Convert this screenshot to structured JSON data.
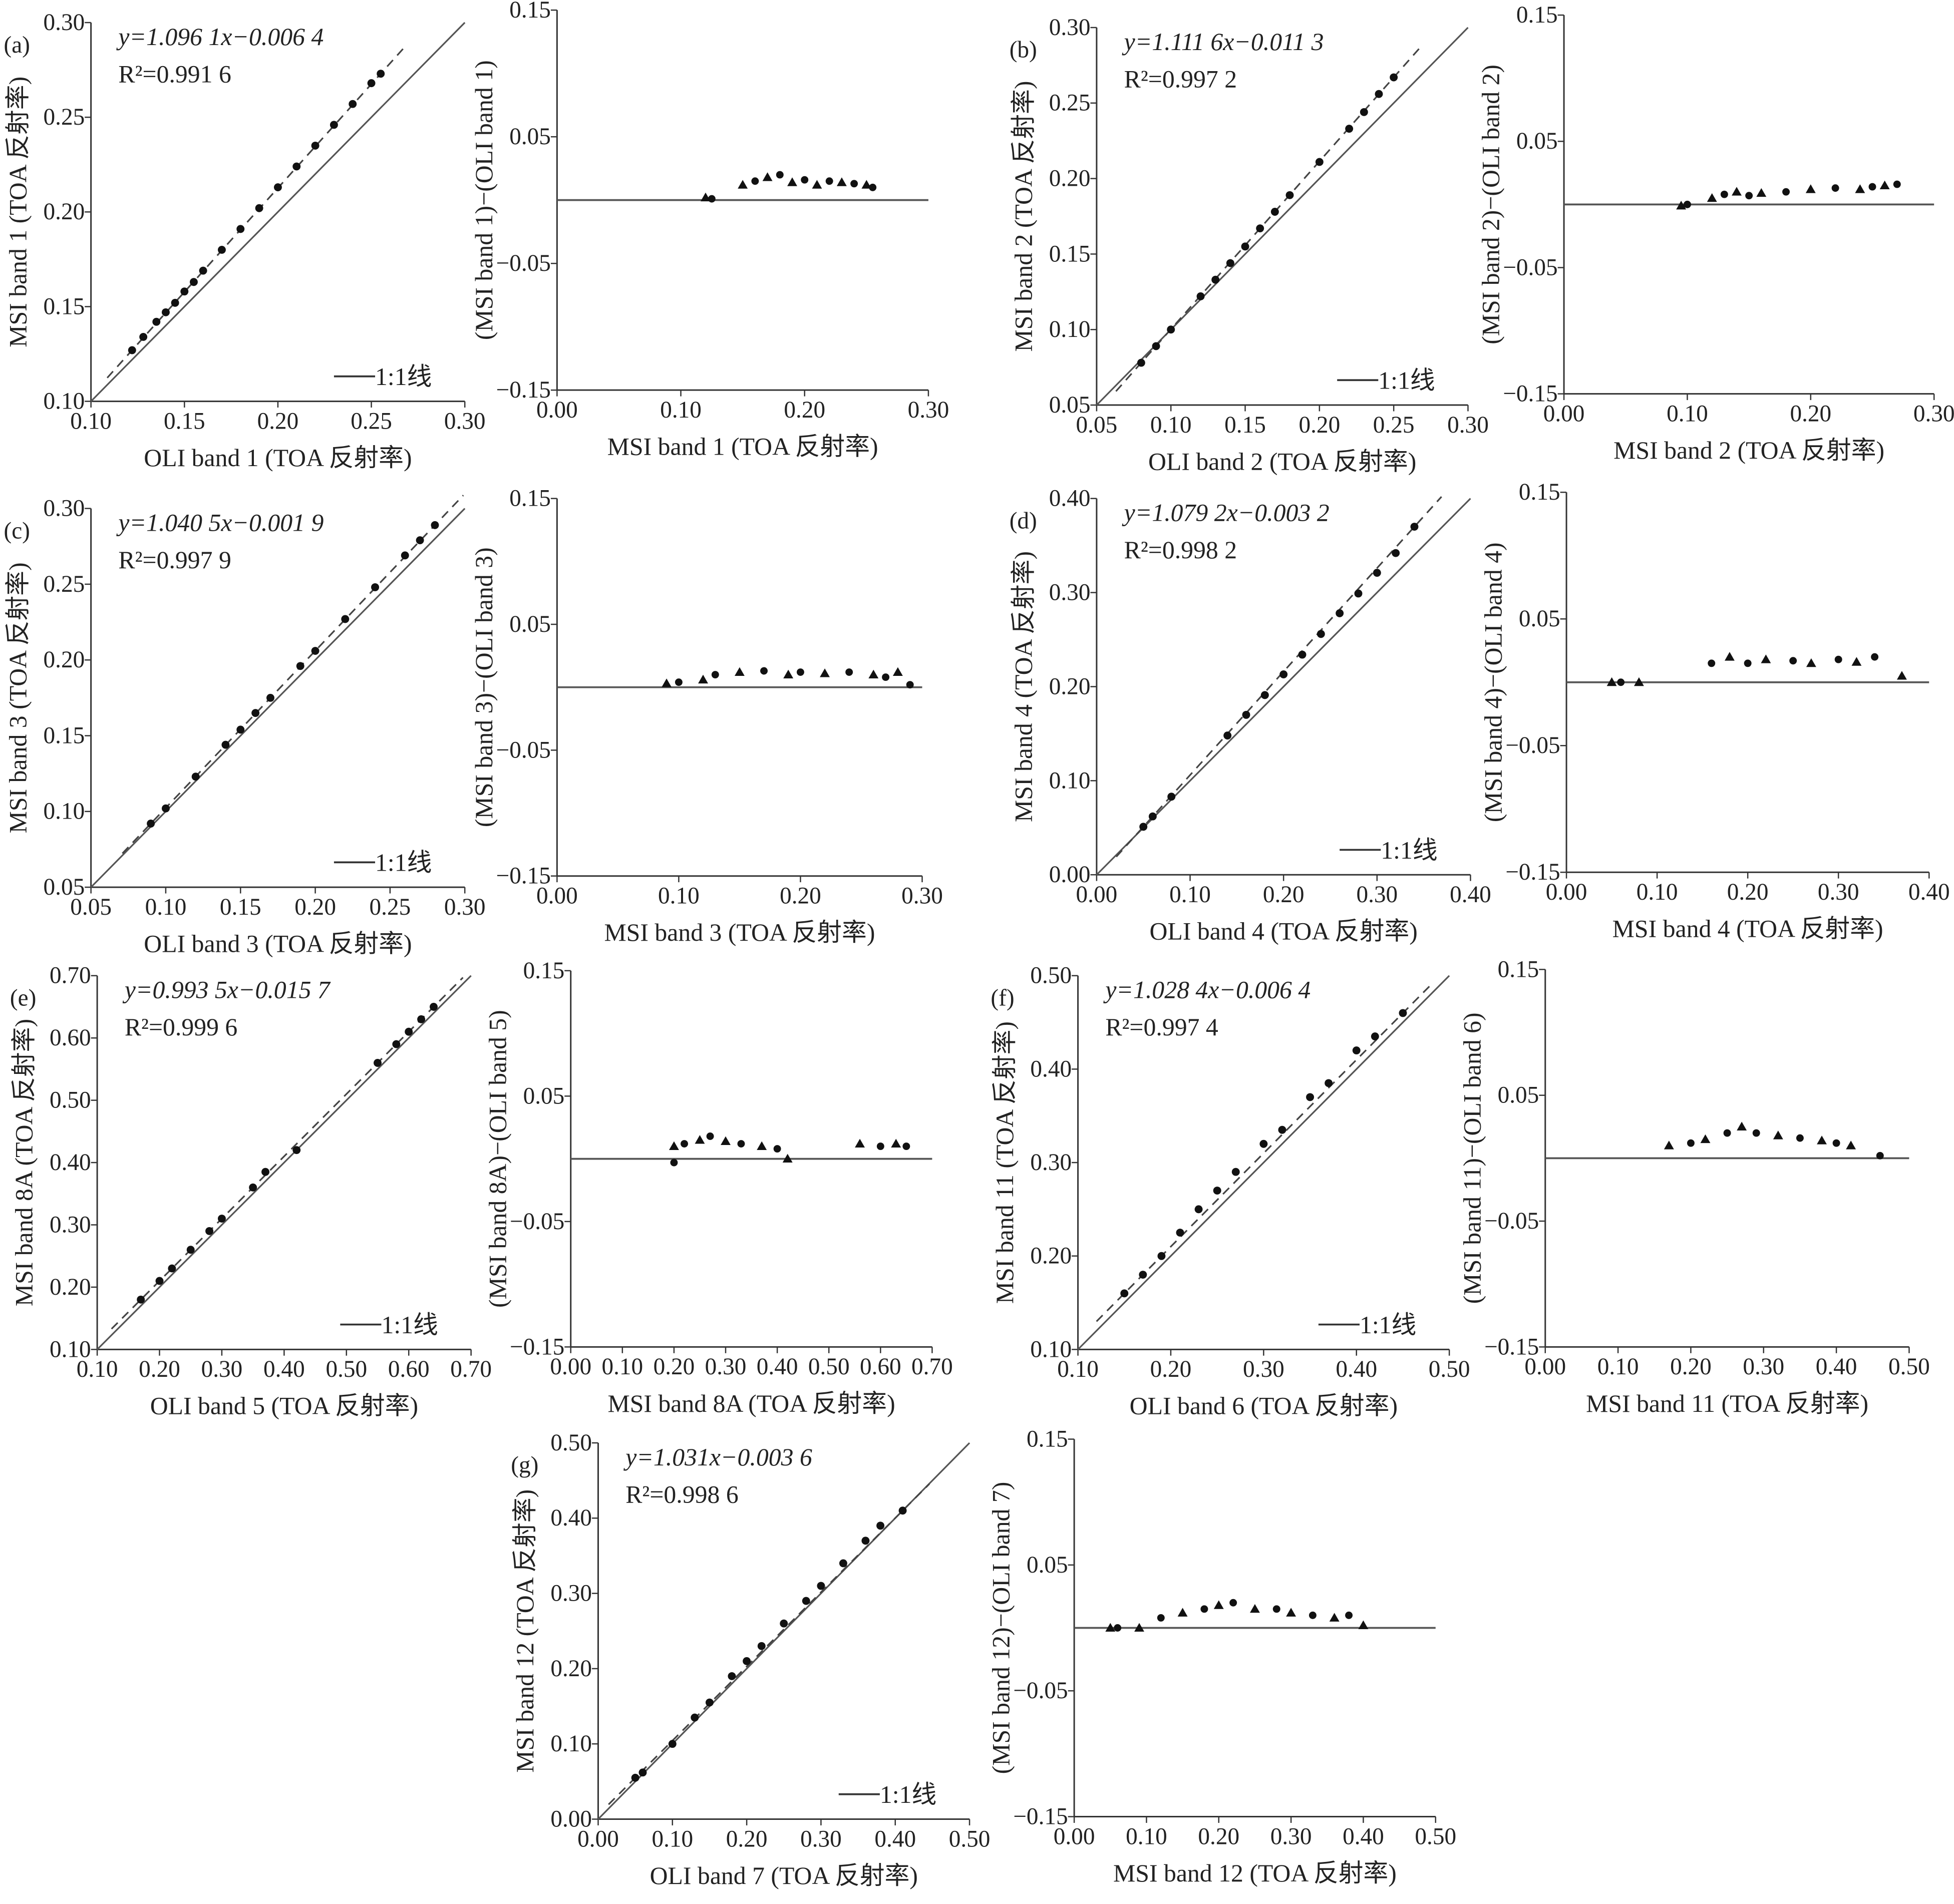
{
  "chart_data": [
    {
      "type": "scatter",
      "panel": "(a)",
      "equation": "y=1.096 1x−0.006 4",
      "r2": "R²=0.991 6",
      "legend": "1:1线",
      "xlabel": "OLI band 1 (TOA 反射率)",
      "ylabel": "MSI band 1 (TOA 反射率)",
      "xlim": [
        0.1,
        0.3
      ],
      "ylim": [
        0.1,
        0.3
      ],
      "xticks": [
        "0.10",
        "0.15",
        "0.20",
        "0.25",
        "0.30"
      ],
      "yticks": [
        "0.10",
        "0.15",
        "0.20",
        "0.25",
        "0.30"
      ],
      "points": [
        [
          0.122,
          0.127
        ],
        [
          0.128,
          0.134
        ],
        [
          0.135,
          0.142
        ],
        [
          0.14,
          0.147
        ],
        [
          0.145,
          0.152
        ],
        [
          0.15,
          0.158
        ],
        [
          0.155,
          0.163
        ],
        [
          0.16,
          0.169
        ],
        [
          0.17,
          0.18
        ],
        [
          0.18,
          0.191
        ],
        [
          0.19,
          0.202
        ],
        [
          0.2,
          0.213
        ],
        [
          0.21,
          0.224
        ],
        [
          0.22,
          0.235
        ],
        [
          0.23,
          0.246
        ],
        [
          0.24,
          0.257
        ],
        [
          0.25,
          0.268
        ],
        [
          0.255,
          0.273
        ]
      ]
    },
    {
      "type": "scatter",
      "panel": "residual-a",
      "xlabel": "MSI band 1 (TOA 反射率)",
      "ylabel": "(MSI band 1)−(OLI band 1)",
      "xlim": [
        0,
        0.3
      ],
      "ylim": [
        -0.15,
        0.15
      ],
      "xticks": [
        "0.00",
        "0.10",
        "0.20",
        "0.30"
      ],
      "yticks": [
        "−0.15",
        "−0.05",
        "0.05",
        "0.15"
      ],
      "points": [
        [
          0.12,
          0.002
        ],
        [
          0.125,
          0.001
        ],
        [
          0.15,
          0.012
        ],
        [
          0.16,
          0.015
        ],
        [
          0.17,
          0.018
        ],
        [
          0.18,
          0.02
        ],
        [
          0.19,
          0.014
        ],
        [
          0.2,
          0.016
        ],
        [
          0.21,
          0.012
        ],
        [
          0.22,
          0.015
        ],
        [
          0.23,
          0.014
        ],
        [
          0.24,
          0.013
        ],
        [
          0.25,
          0.012
        ],
        [
          0.255,
          0.01
        ]
      ]
    },
    {
      "type": "scatter",
      "panel": "(b)",
      "equation": "y=1.111 6x−0.011 3",
      "r2": "R²=0.997 2",
      "legend": "1:1线",
      "xlabel": "OLI band 2 (TOA 反射率)",
      "ylabel": "MSI band 2 (TOA 反射率)",
      "xlim": [
        0.05,
        0.3
      ],
      "ylim": [
        0.05,
        0.3
      ],
      "xticks": [
        "0.05",
        "0.10",
        "0.15",
        "0.20",
        "0.25",
        "0.30"
      ],
      "yticks": [
        "0.05",
        "0.10",
        "0.15",
        "0.20",
        "0.25",
        "0.30"
      ],
      "points": [
        [
          0.08,
          0.078
        ],
        [
          0.09,
          0.089
        ],
        [
          0.1,
          0.1
        ],
        [
          0.12,
          0.122
        ],
        [
          0.13,
          0.133
        ],
        [
          0.14,
          0.144
        ],
        [
          0.15,
          0.155
        ],
        [
          0.16,
          0.167
        ],
        [
          0.17,
          0.178
        ],
        [
          0.18,
          0.189
        ],
        [
          0.2,
          0.211
        ],
        [
          0.22,
          0.233
        ],
        [
          0.23,
          0.244
        ],
        [
          0.24,
          0.256
        ],
        [
          0.25,
          0.267
        ]
      ]
    },
    {
      "type": "scatter",
      "panel": "residual-b",
      "xlabel": "MSI band 2 (TOA 反射率)",
      "ylabel": "(MSI band 2)−(OLI band 2)",
      "xlim": [
        0,
        0.3
      ],
      "ylim": [
        -0.15,
        0.15
      ],
      "xticks": [
        "0.00",
        "0.10",
        "0.20",
        "0.30"
      ],
      "yticks": [
        "−0.15",
        "−0.05",
        "0.05",
        "0.15"
      ],
      "points": [
        [
          0.095,
          -0.001
        ],
        [
          0.1,
          0
        ],
        [
          0.12,
          0.005
        ],
        [
          0.13,
          0.008
        ],
        [
          0.14,
          0.01
        ],
        [
          0.15,
          0.007
        ],
        [
          0.16,
          0.009
        ],
        [
          0.18,
          0.01
        ],
        [
          0.2,
          0.012
        ],
        [
          0.22,
          0.013
        ],
        [
          0.24,
          0.012
        ],
        [
          0.25,
          0.014
        ],
        [
          0.26,
          0.015
        ],
        [
          0.27,
          0.016
        ]
      ]
    },
    {
      "type": "scatter",
      "panel": "(c)",
      "equation": "y=1.040 5x−0.001 9",
      "r2": "R²=0.997 9",
      "legend": "1:1线",
      "xlabel": "OLI band 3 (TOA 反射率)",
      "ylabel": "MSI band 3 (TOA 反射率)",
      "xlim": [
        0.05,
        0.3
      ],
      "ylim": [
        0.05,
        0.3
      ],
      "xticks": [
        "0.05",
        "0.10",
        "0.15",
        "0.20",
        "0.25",
        "0.30"
      ],
      "yticks": [
        "0.05",
        "0.10",
        "0.15",
        "0.20",
        "0.25",
        "0.30"
      ],
      "points": [
        [
          0.09,
          0.092
        ],
        [
          0.1,
          0.102
        ],
        [
          0.12,
          0.123
        ],
        [
          0.14,
          0.144
        ],
        [
          0.15,
          0.154
        ],
        [
          0.16,
          0.165
        ],
        [
          0.17,
          0.175
        ],
        [
          0.19,
          0.196
        ],
        [
          0.2,
          0.206
        ],
        [
          0.22,
          0.227
        ],
        [
          0.24,
          0.248
        ],
        [
          0.26,
          0.269
        ],
        [
          0.27,
          0.279
        ],
        [
          0.28,
          0.289
        ]
      ]
    },
    {
      "type": "scatter",
      "panel": "residual-c",
      "xlabel": "MSI band 3 (TOA 反射率)",
      "ylabel": "(MSI band 3)−(OLI band 3)",
      "xlim": [
        0,
        0.3
      ],
      "ylim": [
        -0.15,
        0.15
      ],
      "xticks": [
        "0.00",
        "0.10",
        "0.20",
        "0.30"
      ],
      "yticks": [
        "−0.15",
        "−0.05",
        "0.05",
        "0.15"
      ],
      "points": [
        [
          0.09,
          0.003
        ],
        [
          0.1,
          0.004
        ],
        [
          0.12,
          0.006
        ],
        [
          0.13,
          0.01
        ],
        [
          0.15,
          0.012
        ],
        [
          0.17,
          0.013
        ],
        [
          0.19,
          0.01
        ],
        [
          0.2,
          0.012
        ],
        [
          0.22,
          0.011
        ],
        [
          0.24,
          0.012
        ],
        [
          0.26,
          0.01
        ],
        [
          0.27,
          0.008
        ],
        [
          0.28,
          0.012
        ],
        [
          0.29,
          0.002
        ]
      ]
    },
    {
      "type": "scatter",
      "panel": "(d)",
      "equation": "y=1.079 2x−0.003 2",
      "r2": "R²=0.998 2",
      "legend": "1:1线",
      "xlabel": "OLI band 4 (TOA 反射率)",
      "ylabel": "MSI band 4 (TOA 反射率)",
      "xlim": [
        0,
        0.4
      ],
      "ylim": [
        0,
        0.4
      ],
      "xticks": [
        "0.00",
        "0.10",
        "0.20",
        "0.30",
        "0.40"
      ],
      "yticks": [
        "0.00",
        "0.10",
        "0.20",
        "0.30",
        "0.40"
      ],
      "points": [
        [
          0.05,
          0.051
        ],
        [
          0.06,
          0.062
        ],
        [
          0.08,
          0.083
        ],
        [
          0.14,
          0.148
        ],
        [
          0.16,
          0.17
        ],
        [
          0.18,
          0.191
        ],
        [
          0.2,
          0.213
        ],
        [
          0.22,
          0.234
        ],
        [
          0.24,
          0.256
        ],
        [
          0.26,
          0.278
        ],
        [
          0.28,
          0.299
        ],
        [
          0.3,
          0.321
        ],
        [
          0.32,
          0.342
        ],
        [
          0.34,
          0.37
        ]
      ]
    },
    {
      "type": "scatter",
      "panel": "residual-d",
      "xlabel": "MSI band 4 (TOA 反射率)",
      "ylabel": "(MSI band 4)−(OLI band 4)",
      "xlim": [
        0,
        0.4
      ],
      "ylim": [
        -0.15,
        0.15
      ],
      "xticks": [
        "0.00",
        "0.10",
        "0.20",
        "0.30",
        "0.40"
      ],
      "yticks": [
        "−0.15",
        "−0.05",
        "0.05",
        "0.15"
      ],
      "points": [
        [
          0.05,
          0
        ],
        [
          0.06,
          0
        ],
        [
          0.08,
          0
        ],
        [
          0.16,
          0.015
        ],
        [
          0.18,
          0.02
        ],
        [
          0.2,
          0.015
        ],
        [
          0.22,
          0.018
        ],
        [
          0.25,
          0.017
        ],
        [
          0.27,
          0.015
        ],
        [
          0.3,
          0.018
        ],
        [
          0.32,
          0.016
        ],
        [
          0.34,
          0.02
        ],
        [
          0.37,
          0.005
        ]
      ]
    },
    {
      "type": "scatter",
      "panel": "(e)",
      "equation": "y=0.993 5x−0.015 7",
      "r2": "R²=0.999 6",
      "legend": "1:1线",
      "xlabel": "OLI band 5 (TOA 反射率)",
      "ylabel": "MSI band 8A (TOA 反射率)",
      "xlim": [
        0.1,
        0.7
      ],
      "ylim": [
        0.1,
        0.7
      ],
      "xticks": [
        "0.10",
        "0.20",
        "0.30",
        "0.40",
        "0.50",
        "0.60",
        "0.70"
      ],
      "yticks": [
        "0.10",
        "0.20",
        "0.30",
        "0.40",
        "0.50",
        "0.60",
        "0.70"
      ],
      "points": [
        [
          0.17,
          0.18
        ],
        [
          0.2,
          0.21
        ],
        [
          0.22,
          0.23
        ],
        [
          0.25,
          0.26
        ],
        [
          0.28,
          0.29
        ],
        [
          0.3,
          0.31
        ],
        [
          0.35,
          0.36
        ],
        [
          0.37,
          0.385
        ],
        [
          0.42,
          0.42
        ],
        [
          0.55,
          0.56
        ],
        [
          0.58,
          0.59
        ],
        [
          0.6,
          0.61
        ],
        [
          0.62,
          0.63
        ],
        [
          0.64,
          0.65
        ]
      ]
    },
    {
      "type": "scatter",
      "panel": "residual-e",
      "xlabel": "MSI band 8A (TOA 反射率)",
      "ylabel": "(MSI band 8A)−(OLI band 5)",
      "xlim": [
        0,
        0.7
      ],
      "ylim": [
        -0.15,
        0.15
      ],
      "xticks": [
        "0.00",
        "0.10",
        "0.20",
        "0.30",
        "0.40",
        "0.50",
        "0.60",
        "0.70"
      ],
      "yticks": [
        "−0.15",
        "−0.05",
        "0.05",
        "0.15"
      ],
      "points": [
        [
          0.2,
          0.01
        ],
        [
          0.22,
          0.012
        ],
        [
          0.25,
          0.015
        ],
        [
          0.27,
          0.018
        ],
        [
          0.3,
          0.014
        ],
        [
          0.33,
          0.012
        ],
        [
          0.37,
          0.01
        ],
        [
          0.4,
          0.008
        ],
        [
          0.42,
          0
        ],
        [
          0.2,
          -0.003
        ],
        [
          0.56,
          0.012
        ],
        [
          0.6,
          0.01
        ],
        [
          0.63,
          0.012
        ],
        [
          0.65,
          0.01
        ]
      ]
    },
    {
      "type": "scatter",
      "panel": "(f)",
      "equation": "y=1.028 4x−0.006 4",
      "r2": "R²=0.997 4",
      "legend": "1:1线",
      "xlabel": "OLI band 6 (TOA 反射率)",
      "ylabel": "MSI band 11 (TOA 反射率)",
      "xlim": [
        0.1,
        0.5
      ],
      "ylim": [
        0.1,
        0.5
      ],
      "xticks": [
        "0.10",
        "0.20",
        "0.30",
        "0.40",
        "0.50"
      ],
      "yticks": [
        "0.10",
        "0.20",
        "0.30",
        "0.40",
        "0.50"
      ],
      "points": [
        [
          0.15,
          0.16
        ],
        [
          0.17,
          0.18
        ],
        [
          0.19,
          0.2
        ],
        [
          0.21,
          0.225
        ],
        [
          0.23,
          0.25
        ],
        [
          0.25,
          0.27
        ],
        [
          0.27,
          0.29
        ],
        [
          0.3,
          0.32
        ],
        [
          0.32,
          0.335
        ],
        [
          0.35,
          0.37
        ],
        [
          0.37,
          0.385
        ],
        [
          0.4,
          0.42
        ],
        [
          0.42,
          0.435
        ],
        [
          0.45,
          0.46
        ]
      ]
    },
    {
      "type": "scatter",
      "panel": "residual-f",
      "xlabel": "MSI band 11 (TOA 反射率)",
      "ylabel": "(MSI band 11)−(OLI band 6)",
      "xlim": [
        0,
        0.5
      ],
      "ylim": [
        -0.15,
        0.15
      ],
      "xticks": [
        "0.00",
        "0.10",
        "0.20",
        "0.30",
        "0.40",
        "0.50"
      ],
      "yticks": [
        "−0.15",
        "−0.05",
        "0.05",
        "0.15"
      ],
      "points": [
        [
          0.17,
          0.01
        ],
        [
          0.2,
          0.012
        ],
        [
          0.22,
          0.015
        ],
        [
          0.25,
          0.02
        ],
        [
          0.27,
          0.025
        ],
        [
          0.29,
          0.02
        ],
        [
          0.32,
          0.018
        ],
        [
          0.35,
          0.016
        ],
        [
          0.38,
          0.014
        ],
        [
          0.4,
          0.012
        ],
        [
          0.42,
          0.01
        ],
        [
          0.46,
          0.002
        ]
      ]
    },
    {
      "type": "scatter",
      "panel": "(g)",
      "equation": "y=1.031x−0.003 6",
      "r2": "R²=0.998 6",
      "legend": "1:1线",
      "xlabel": "OLI band 7 (TOA 反射率)",
      "ylabel": "MSI band 12 (TOA 反射率)",
      "xlim": [
        0,
        0.5
      ],
      "ylim": [
        0,
        0.5
      ],
      "xticks": [
        "0.00",
        "0.10",
        "0.20",
        "0.30",
        "0.40",
        "0.50"
      ],
      "yticks": [
        "0.00",
        "0.10",
        "0.20",
        "0.30",
        "0.40",
        "0.50"
      ],
      "points": [
        [
          0.05,
          0.055
        ],
        [
          0.06,
          0.062
        ],
        [
          0.1,
          0.1
        ],
        [
          0.13,
          0.135
        ],
        [
          0.15,
          0.155
        ],
        [
          0.18,
          0.19
        ],
        [
          0.2,
          0.21
        ],
        [
          0.22,
          0.23
        ],
        [
          0.25,
          0.26
        ],
        [
          0.28,
          0.29
        ],
        [
          0.3,
          0.31
        ],
        [
          0.33,
          0.34
        ],
        [
          0.36,
          0.37
        ],
        [
          0.38,
          0.39
        ],
        [
          0.41,
          0.41
        ]
      ]
    },
    {
      "type": "scatter",
      "panel": "residual-g",
      "xlabel": "MSI band 12 (TOA 反射率)",
      "ylabel": "(MSI band 12)−(OLI band 7)",
      "xlim": [
        0,
        0.5
      ],
      "ylim": [
        -0.15,
        0.15
      ],
      "xticks": [
        "0.00",
        "0.10",
        "0.20",
        "0.30",
        "0.40",
        "0.50"
      ],
      "yticks": [
        "−0.15",
        "−0.05",
        "0.05",
        "0.15"
      ],
      "points": [
        [
          0.05,
          0
        ],
        [
          0.06,
          0
        ],
        [
          0.09,
          0
        ],
        [
          0.12,
          0.008
        ],
        [
          0.15,
          0.012
        ],
        [
          0.18,
          0.015
        ],
        [
          0.2,
          0.018
        ],
        [
          0.22,
          0.02
        ],
        [
          0.25,
          0.015
        ],
        [
          0.28,
          0.015
        ],
        [
          0.3,
          0.012
        ],
        [
          0.33,
          0.01
        ],
        [
          0.36,
          0.008
        ],
        [
          0.38,
          0.01
        ],
        [
          0.4,
          0.002
        ]
      ]
    }
  ]
}
